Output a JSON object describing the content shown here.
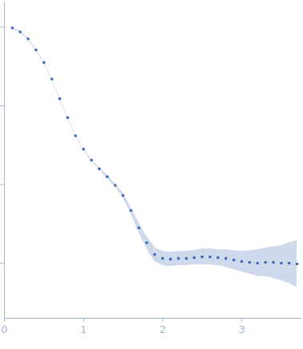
{
  "chart_data": {
    "type": "scatter",
    "x": [
      0.1,
      0.2,
      0.3,
      0.4,
      0.5,
      0.6,
      0.7,
      0.8,
      0.9,
      1.0,
      1.1,
      1.2,
      1.3,
      1.4,
      1.5,
      1.6,
      1.7,
      1.8,
      1.9,
      2.0,
      2.1,
      2.2,
      2.3,
      2.4,
      2.5,
      2.6,
      2.7,
      2.8,
      2.9,
      3.0,
      3.1,
      3.2,
      3.3,
      3.4,
      3.5,
      3.6,
      3.7
    ],
    "values": [
      3.69,
      3.64,
      3.55,
      3.41,
      3.25,
      3.04,
      2.79,
      2.55,
      2.32,
      2.15,
      2.01,
      1.9,
      1.8,
      1.69,
      1.56,
      1.37,
      1.15,
      0.96,
      0.81,
      0.76,
      0.75,
      0.76,
      0.76,
      0.77,
      0.78,
      0.78,
      0.77,
      0.76,
      0.74,
      0.72,
      0.71,
      0.7,
      0.71,
      0.71,
      0.7,
      0.7,
      0.69
    ],
    "errors": [
      0.01,
      0.01,
      0.01,
      0.01,
      0.01,
      0.01,
      0.01,
      0.01,
      0.01,
      0.01,
      0.01,
      0.01,
      0.02,
      0.02,
      0.03,
      0.04,
      0.06,
      0.08,
      0.09,
      0.09,
      0.09,
      0.09,
      0.09,
      0.09,
      0.1,
      0.1,
      0.1,
      0.11,
      0.12,
      0.13,
      0.15,
      0.17,
      0.18,
      0.2,
      0.22,
      0.26,
      0.3
    ],
    "color": "#3a66b5",
    "marker": "circle",
    "xlim": [
      0,
      3.76
    ],
    "xticks": [
      0,
      1,
      2,
      3
    ],
    "ylim": [
      0,
      4.02
    ],
    "yticks": [
      0.7,
      1.7,
      2.7,
      3.7
    ],
    "tick_labels": "x"
  }
}
